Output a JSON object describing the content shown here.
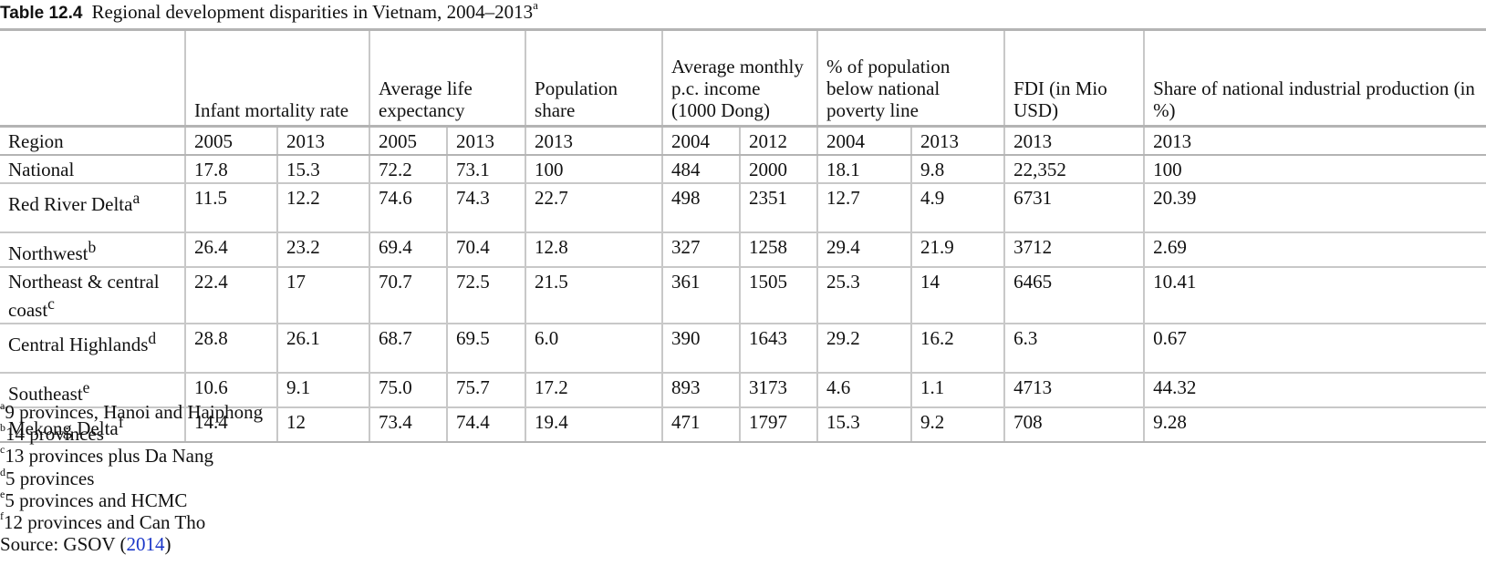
{
  "caption": {
    "label": "Table 12.4",
    "title": "Regional development disparities in Vietnam, 2004–2013",
    "mark": "a"
  },
  "headers": {
    "infant": "Infant mortality rate",
    "life": "Average life expectancy",
    "pop": "Population share",
    "income": "Average monthly p.c. income (1000 Dong)",
    "poverty": "% of population below national poverty line",
    "fdi": "FDI (in Mio USD)",
    "industry": "Share of national industrial production (in %)"
  },
  "years": [
    "Region",
    "2005",
    "2013",
    "2005",
    "2013",
    "2013",
    "2004",
    "2012",
    "2004",
    "2013",
    "2013",
    "2013"
  ],
  "rows": [
    {
      "region": "National",
      "mark": "",
      "values": [
        "17.8",
        "15.3",
        "72.2",
        "73.1",
        "100",
        "484",
        "2000",
        "18.1",
        "9.8",
        "22,352",
        "100"
      ]
    },
    {
      "region": "Red River Delta",
      "mark": "a",
      "values": [
        "11.5",
        "12.2",
        "74.6",
        "74.3",
        "22.7",
        "498",
        "2351",
        "12.7",
        "4.9",
        "6731",
        "20.39"
      ]
    },
    {
      "region": "Northwest",
      "mark": "b",
      "values": [
        "26.4",
        "23.2",
        "69.4",
        "70.4",
        "12.8",
        "327",
        "1258",
        "29.4",
        "21.9",
        "3712",
        "2.69"
      ]
    },
    {
      "region": "Northeast & central coast",
      "mark": "c",
      "values": [
        "22.4",
        "17",
        "70.7",
        "72.5",
        "21.5",
        "361",
        "1505",
        "25.3",
        "14",
        "6465",
        "10.41"
      ]
    },
    {
      "region": "Central Highlands",
      "mark": "d",
      "values": [
        "28.8",
        "26.1",
        "68.7",
        "69.5",
        "6.0",
        "390",
        "1643",
        "29.2",
        "16.2",
        "6.3",
        "0.67"
      ]
    },
    {
      "region": "Southeast",
      "mark": "e",
      "values": [
        "10.6",
        "9.1",
        "75.0",
        "75.7",
        "17.2",
        "893",
        "3173",
        "4.6",
        "1.1",
        "4713",
        "44.32"
      ]
    },
    {
      "region": "Mekong Delta",
      "mark": "f",
      "values": [
        "14.4",
        "12",
        "73.4",
        "74.4",
        "19.4",
        "471",
        "1797",
        "15.3",
        "9.2",
        "708",
        "9.28"
      ]
    }
  ],
  "footnotes": [
    {
      "mark": "a",
      "text": "9 provinces, Hanoi and Haiphong"
    },
    {
      "mark": "b",
      "text": "14 provinces"
    },
    {
      "mark": "c",
      "text": "13 provinces plus Da Nang"
    },
    {
      "mark": "d",
      "text": "5 provinces"
    },
    {
      "mark": "e",
      "text": "5 provinces and HCMC"
    },
    {
      "mark": "f",
      "text": "12 provinces and Can Tho"
    }
  ],
  "source": {
    "prefix": "Source: GSOV (",
    "link": "2014",
    "suffix": ")"
  },
  "colors": {
    "link": "#1a36c8",
    "rule": "#c8c8c8"
  }
}
